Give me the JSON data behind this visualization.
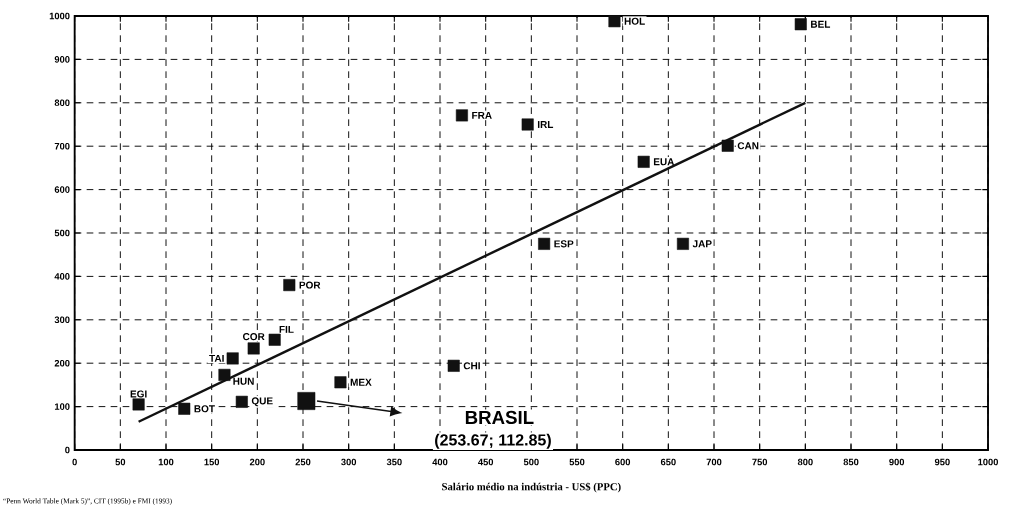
{
  "chart_data": {
    "type": "scatter",
    "xlabel": "Salário médio na indústria - US$ (PPC)",
    "series": [
      {
        "name": "EGI",
        "color": "#111111",
        "x": [
          70
        ],
        "values": [
          105
        ]
      },
      {
        "name": "BOT",
        "color": "#111111",
        "x": [
          120
        ],
        "values": [
          95
        ]
      },
      {
        "name": "QUE",
        "color": "#111111",
        "x": [
          183
        ],
        "values": [
          111
        ]
      },
      {
        "name": "HUN",
        "color": "#111111",
        "x": [
          164
        ],
        "values": [
          173
        ]
      },
      {
        "name": "TAI",
        "color": "#111111",
        "x": [
          173
        ],
        "values": [
          211
        ]
      },
      {
        "name": "COR",
        "color": "#111111",
        "x": [
          196
        ],
        "values": [
          234
        ]
      },
      {
        "name": "FIL",
        "color": "#111111",
        "x": [
          219
        ],
        "values": [
          254
        ]
      },
      {
        "name": "POR",
        "color": "#111111",
        "x": [
          235
        ],
        "values": [
          380
        ]
      },
      {
        "name": "MEX",
        "color": "#111111",
        "x": [
          291
        ],
        "values": [
          156
        ]
      },
      {
        "name": "CHI",
        "color": "#111111",
        "x": [
          415
        ],
        "values": [
          194
        ]
      },
      {
        "name": "FRA",
        "color": "#111111",
        "x": [
          424
        ],
        "values": [
          771
        ]
      },
      {
        "name": "IRL",
        "color": "#111111",
        "x": [
          496
        ],
        "values": [
          750
        ]
      },
      {
        "name": "ESP",
        "color": "#111111",
        "x": [
          514
        ],
        "values": [
          475
        ]
      },
      {
        "name": "HOL",
        "color": "#111111",
        "x": [
          591
        ],
        "values": [
          988
        ]
      },
      {
        "name": "EUA",
        "color": "#111111",
        "x": [
          623
        ],
        "values": [
          664
        ]
      },
      {
        "name": "JAP",
        "color": "#111111",
        "x": [
          666
        ],
        "values": [
          475
        ]
      },
      {
        "name": "CAN",
        "color": "#111111",
        "x": [
          715
        ],
        "values": [
          701
        ]
      },
      {
        "name": "BEL",
        "color": "#111111",
        "x": [
          795
        ],
        "values": [
          981
        ]
      },
      {
        "color": "#111111",
        "x": [
          253.67
        ],
        "values": [
          112.85
        ]
      },
      {
        "type": "line",
        "marker": "none",
        "color": "#111111",
        "x": [
          70,
          800
        ],
        "values": [
          65,
          800
        ]
      }
    ],
    "xlim": [
      0,
      1000
    ],
    "ylim": [
      0,
      1000
    ],
    "xticks": [
      0,
      50,
      100,
      150,
      200,
      250,
      300,
      350,
      400,
      450,
      500,
      550,
      600,
      650,
      700,
      750,
      800,
      850,
      900,
      950,
      1000
    ],
    "yticks": [
      0,
      100,
      200,
      300,
      400,
      500,
      600,
      700,
      800,
      900,
      1000
    ],
    "grid": true,
    "marker": "square",
    "annotations": [
      "“Penn World Table (Mark 5)”, CIT (1995b) e FMI (1993)",
      "BRASIL",
      "(253.67; 112.85)"
    ]
  }
}
